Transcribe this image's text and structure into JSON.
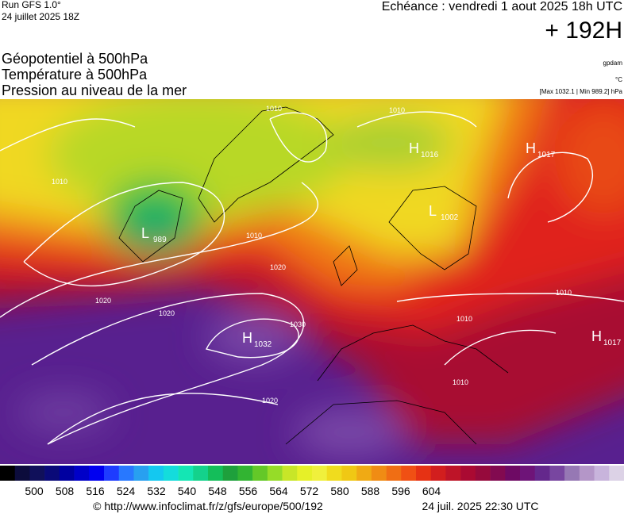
{
  "header": {
    "run": "Run GFS 1.0°",
    "run_date": "24 juillet 2025 18Z",
    "valid": "Echéance : vendredi 1 aout 2025 18h UTC",
    "lead": "+ 192H"
  },
  "titles": [
    "Géopotentiel à 500hPa",
    "Température à 500hPa",
    "Pression au niveau de la mer"
  ],
  "units": {
    "geopotential": "gpdam",
    "temperature": "°C",
    "pressure": "[Max 1032.1 | Min 989.2] hPa"
  },
  "centers": [
    {
      "letter": "L",
      "value": "989"
    },
    {
      "letter": "H",
      "value": "1032"
    },
    {
      "letter": "H",
      "value": "1016"
    },
    {
      "letter": "H",
      "value": "1017"
    },
    {
      "letter": "L",
      "value": "1002"
    },
    {
      "letter": "H",
      "value": "1017"
    }
  ],
  "isobar_labels": [
    "1010",
    "1010",
    "1020",
    "1020",
    "1020",
    "1030",
    "1020",
    "1010",
    "1010",
    "1010",
    "1010",
    "1010"
  ],
  "colorbar": {
    "colors": [
      "#000000",
      "#0c0c3c",
      "#10105a",
      "#0a0a78",
      "#0000a0",
      "#0000c8",
      "#0000f0",
      "#1e3cff",
      "#2878ff",
      "#28a0f0",
      "#14c8f0",
      "#14dcdc",
      "#14e6b4",
      "#14d28c",
      "#14be5a",
      "#1ea03c",
      "#32b432",
      "#64c828",
      "#96dc28",
      "#c8e628",
      "#e6f028",
      "#f0f03c",
      "#f0dc1e",
      "#f0c814",
      "#f0aa14",
      "#f08c14",
      "#f06e14",
      "#f05014",
      "#e63214",
      "#d21e1e",
      "#be1428",
      "#aa0a32",
      "#960a3c",
      "#820a50",
      "#6e0a64",
      "#6e1478",
      "#64288c",
      "#7846a0",
      "#9678b4",
      "#b496c8",
      "#c8b4dc",
      "#dcd2e6"
    ],
    "labels": [
      500,
      508,
      516,
      524,
      532,
      540,
      548,
      556,
      564,
      572,
      580,
      588,
      596,
      604
    ]
  },
  "footer": {
    "url": "© http://www.infoclimat.fr/z/gfs/europe/500/192",
    "generated": "24 juil. 2025 22:30 UTC"
  }
}
